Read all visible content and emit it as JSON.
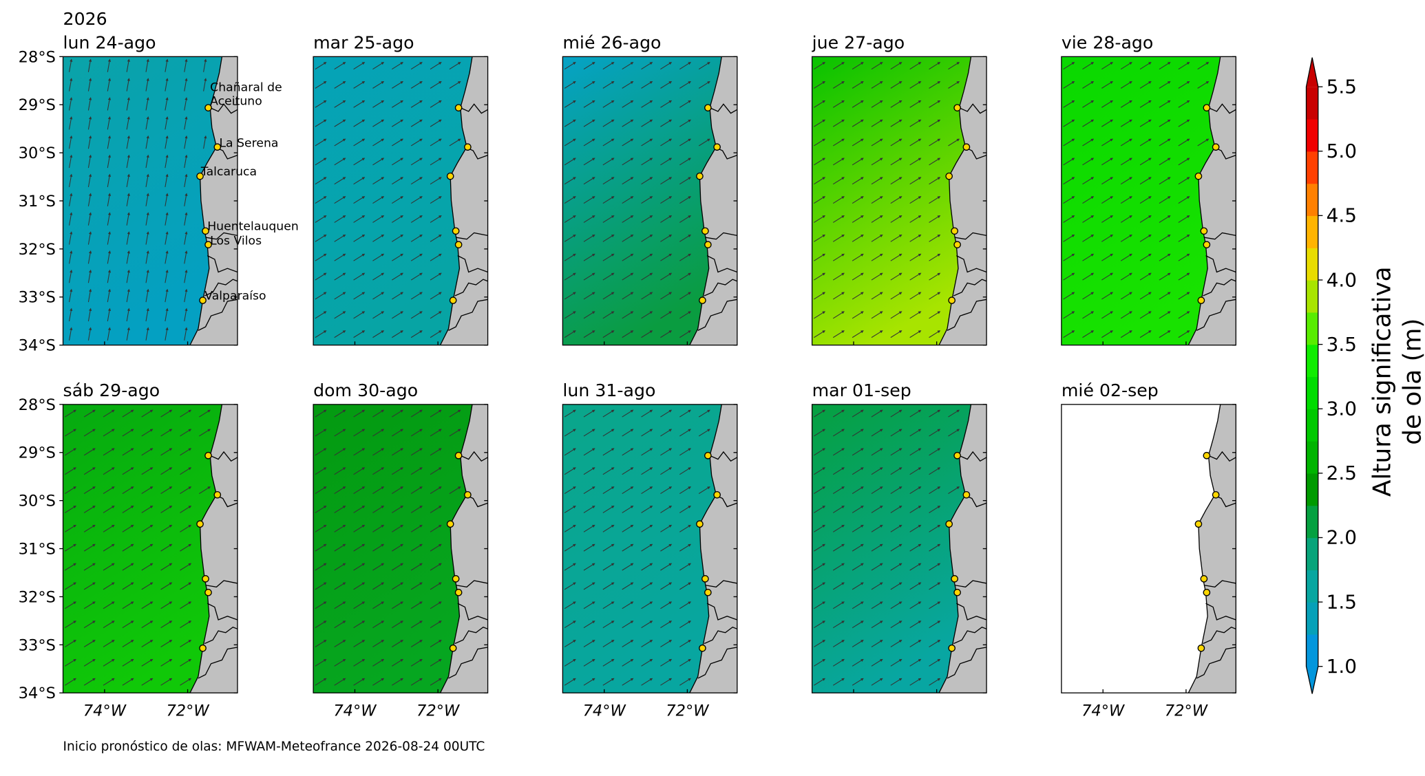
{
  "year": "2026",
  "panels": [
    {
      "title": "lun 24-ago",
      "colors": [
        "#0aa3a8",
        "#04a0c2"
      ],
      "show_lat_labels": true,
      "show_lon_labels": false,
      "show_city_labels": true,
      "has_data": true
    },
    {
      "title": "mar 25-ago",
      "colors": [
        "#05a3b8",
        "#07a4a4"
      ],
      "show_lat_labels": false,
      "show_lon_labels": false,
      "show_city_labels": false,
      "has_data": true
    },
    {
      "title": "mié 26-ago",
      "colors": [
        "#06a2c6",
        "#0a9c40"
      ],
      "show_lat_labels": false,
      "show_lon_labels": false,
      "show_city_labels": false,
      "has_data": true
    },
    {
      "title": "jue 27-ago",
      "colors": [
        "#08c200",
        "#a8e400"
      ],
      "show_lat_labels": false,
      "show_lon_labels": false,
      "show_city_labels": false,
      "has_data": true
    },
    {
      "title": "vie 28-ago",
      "colors": [
        "#0ad800",
        "#18e200"
      ],
      "show_lat_labels": false,
      "show_lon_labels": false,
      "show_city_labels": false,
      "has_data": true
    },
    {
      "title": "sáb 29-ago",
      "colors": [
        "#06aa10",
        "#10c808"
      ],
      "show_lat_labels": true,
      "show_lon_labels": true,
      "show_city_labels": false,
      "has_data": true
    },
    {
      "title": "dom 30-ago",
      "colors": [
        "#049a10",
        "#06a620"
      ],
      "show_lat_labels": false,
      "show_lon_labels": true,
      "show_city_labels": false,
      "has_data": true
    },
    {
      "title": "lun 31-ago",
      "colors": [
        "#0aa68a",
        "#08a6a0"
      ],
      "show_lat_labels": false,
      "show_lon_labels": true,
      "show_city_labels": false,
      "has_data": true
    },
    {
      "title": "mar 01-sep",
      "colors": [
        "#06a040",
        "#08a6a2"
      ],
      "show_lat_labels": false,
      "show_lon_labels": false,
      "show_city_labels": false,
      "has_data": true
    },
    {
      "title": "mié 02-sep",
      "colors": [
        "#ffffff",
        "#ffffff"
      ],
      "show_lat_labels": false,
      "show_lon_labels": true,
      "show_city_labels": false,
      "has_data": false
    }
  ],
  "lat_ticks": [
    {
      "value": 28,
      "label": "28°S"
    },
    {
      "value": 29,
      "label": "29°S"
    },
    {
      "value": 30,
      "label": "30°S"
    },
    {
      "value": 31,
      "label": "31°S"
    },
    {
      "value": 32,
      "label": "32°S"
    },
    {
      "value": 33,
      "label": "33°S"
    },
    {
      "value": 34,
      "label": "34°S"
    }
  ],
  "lon_ticks": [
    {
      "value": -74,
      "label": "74°W"
    },
    {
      "value": -72,
      "label": "72°W"
    }
  ],
  "lat_range": [
    28,
    34
  ],
  "lon_range": [
    -75,
    -70.8
  ],
  "cities": [
    {
      "lines": [
        "Chañaral de",
        "Aceituno"
      ]
    },
    {
      "lines": [
        "La Serena"
      ]
    },
    {
      "lines": [
        "Talcaruca"
      ]
    },
    {
      "lines": [
        "Huentelauquen"
      ]
    },
    {
      "lines": [
        "Los Vilos"
      ]
    },
    {
      "lines": [
        "Valparaíso"
      ]
    }
  ],
  "colorbar": {
    "label": [
      "Altura significativa",
      "de ola (m)"
    ],
    "range": [
      1.0,
      5.5
    ],
    "ticks": [
      {
        "value": 1.0,
        "label": "1.0"
      },
      {
        "value": 1.5,
        "label": "1.5"
      },
      {
        "value": 2.0,
        "label": "2.0"
      },
      {
        "value": 2.5,
        "label": "2.5"
      },
      {
        "value": 3.0,
        "label": "3.0"
      },
      {
        "value": 3.5,
        "label": "3.5"
      },
      {
        "value": 4.0,
        "label": "4.0"
      },
      {
        "value": 4.5,
        "label": "4.5"
      },
      {
        "value": 5.0,
        "label": "5.0"
      },
      {
        "value": 5.5,
        "label": "5.5"
      }
    ],
    "colors": [
      "#0396dc",
      "#06a0b8",
      "#08a6a0",
      "#08a47a",
      "#05a040",
      "#009a00",
      "#00b400",
      "#00c800",
      "#00dc00",
      "#10ec00",
      "#58ec00",
      "#a8e400",
      "#e8dc00",
      "#ffb400",
      "#ff8000",
      "#ff4000",
      "#f00000",
      "#c80000"
    ]
  },
  "footer": "Inicio pronóstico de olas: MFWAM-Meteofrance 2026-08-24 00UTC"
}
